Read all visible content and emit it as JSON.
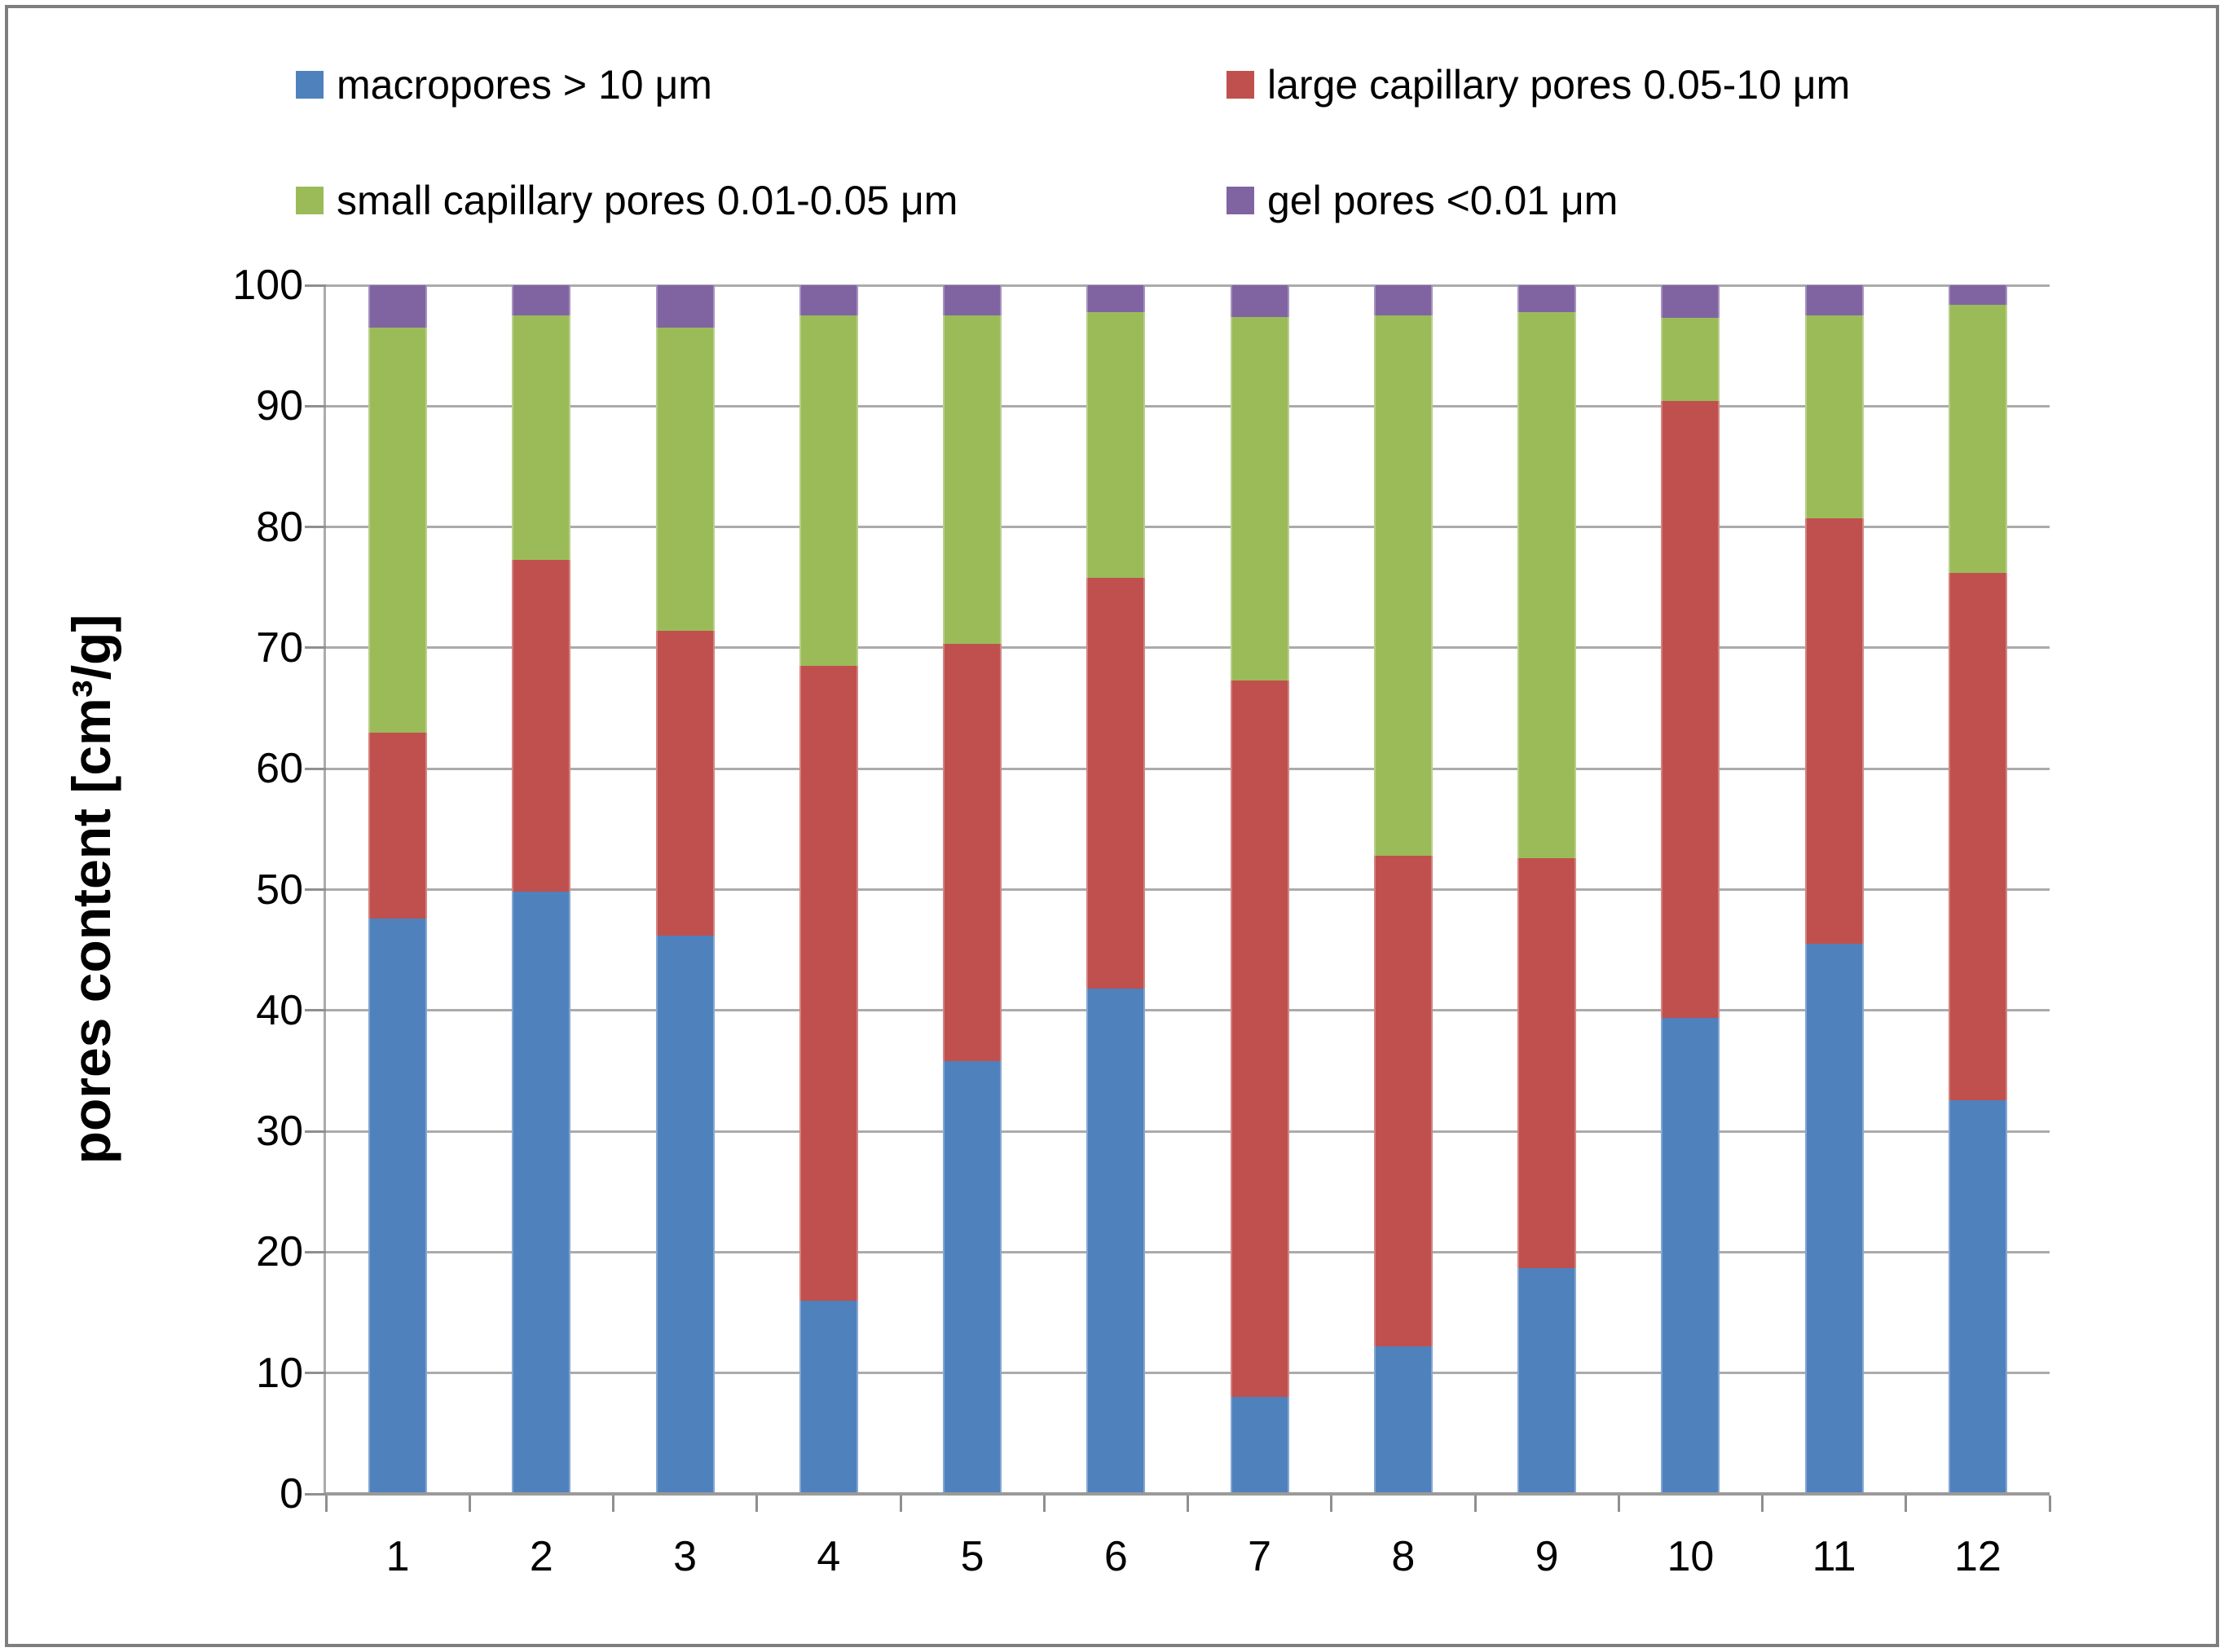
{
  "figure": {
    "background": "#ffffff",
    "border_color": "#7e7e7e",
    "gridline_color": "#ababab",
    "axis_line_color": "#9a9a9a",
    "tick_color": "#8f8f8f"
  },
  "chart_data": {
    "type": "bar",
    "stacked": true,
    "title": "",
    "categories": [
      "1",
      "2",
      "3",
      "4",
      "5",
      "6",
      "7",
      "8",
      "9",
      "10",
      "11",
      "12"
    ],
    "series": [
      {
        "name": "macropores > 10 μm",
        "color": "#4F81BD",
        "values": [
          47.6,
          49.8,
          46.2,
          16.0,
          35.8,
          41.8,
          8.0,
          12.2,
          18.7,
          39.4,
          45.5,
          32.6
        ]
      },
      {
        "name": "large capillary pores 0.05-10 μm",
        "color": "#C0504D",
        "values": [
          15.4,
          27.5,
          25.2,
          52.5,
          34.5,
          34.0,
          59.3,
          40.6,
          33.9,
          51.0,
          35.2,
          43.6
        ]
      },
      {
        "name": "small capillary pores 0.01-0.05 μm",
        "color": "#9BBB59",
        "values": [
          33.5,
          20.2,
          25.1,
          29.0,
          27.2,
          22.0,
          30.1,
          44.7,
          45.2,
          6.9,
          16.8,
          22.2
        ]
      },
      {
        "name": "gel pores <0.01 μm",
        "color": "#8064A2",
        "values": [
          3.5,
          2.5,
          3.5,
          2.5,
          2.5,
          2.2,
          2.6,
          2.5,
          2.2,
          2.7,
          2.5,
          1.6
        ]
      }
    ],
    "xlabel": "",
    "ylabel": "pores content [cm³/g]",
    "ylim": [
      0,
      100
    ],
    "yticks": [
      0,
      10,
      20,
      30,
      40,
      50,
      60,
      70,
      80,
      90,
      100
    ],
    "grid": true,
    "legend_position": "top"
  }
}
